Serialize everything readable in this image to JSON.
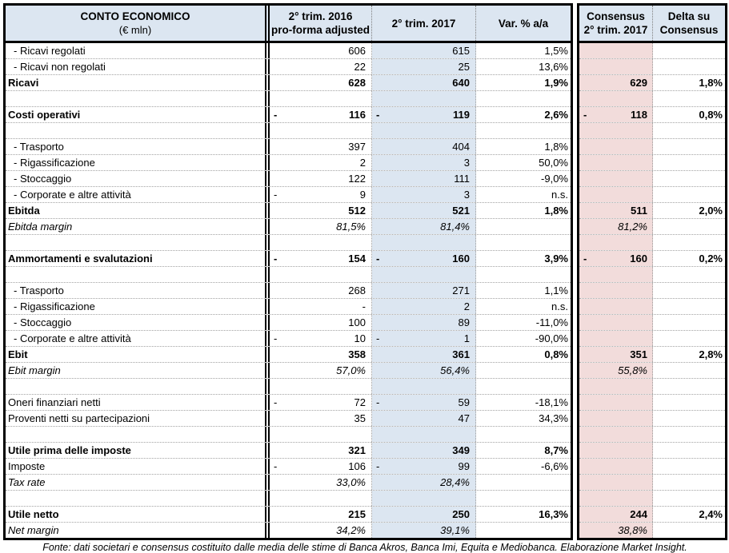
{
  "colors": {
    "header_bg": "#dce6f1",
    "col_2017_bg": "#dce6f1",
    "consensus_bg": "#f2dcdb",
    "border": "#000000"
  },
  "header": {
    "col1": {
      "line1": "CONTO ECONOMICO",
      "line2": "(€ mln)"
    },
    "col2": {
      "line1": "2° trim. 2016",
      "line2": "pro-forma adjusted"
    },
    "col3": {
      "line1": "2° trim. 2017"
    },
    "col4": {
      "line1": "Var. % a/a"
    },
    "col5": {
      "line1": "Consensus",
      "line2": "2° trim. 2017"
    },
    "col6": {
      "line1": "Delta su",
      "line2": "Consensus"
    }
  },
  "rows": [
    {
      "label": "- Ricavi regolati",
      "style": "sub",
      "v16": "606",
      "v17": "615",
      "var": "1,5%"
    },
    {
      "label": "- Ricavi non regolati",
      "style": "sub",
      "v16": "22",
      "v17": "25",
      "var": "13,6%"
    },
    {
      "label": "Ricavi",
      "style": "bold",
      "v16": "628",
      "v17": "640",
      "var": "1,9%",
      "vc": "629",
      "delta": "1,8%"
    },
    {
      "style": "blank"
    },
    {
      "label": "Costi operativi",
      "style": "bold",
      "s16": "-",
      "v16": "116",
      "s17": "-",
      "v17": "119",
      "var": "2,6%",
      "sc": "-",
      "vc": "118",
      "delta": "0,8%"
    },
    {
      "style": "blank"
    },
    {
      "label": "- Trasporto",
      "style": "sub",
      "v16": "397",
      "v17": "404",
      "var": "1,8%"
    },
    {
      "label": "- Rigassificazione",
      "style": "sub",
      "v16": "2",
      "v17": "3",
      "var": "50,0%"
    },
    {
      "label": "- Stoccaggio",
      "style": "sub",
      "v16": "122",
      "v17": "111",
      "var": "-9,0%"
    },
    {
      "label": "- Corporate e altre attività",
      "style": "sub",
      "s16": "-",
      "v16": "9",
      "v17": "3",
      "var": "n.s."
    },
    {
      "label": "Ebitda",
      "style": "bold",
      "v16": "512",
      "v17": "521",
      "var": "1,8%",
      "vc": "511",
      "delta": "2,0%"
    },
    {
      "label": "Ebitda margin",
      "style": "italic",
      "v16": "81,5%",
      "v17": "81,4%",
      "vc": "81,2%"
    },
    {
      "style": "blank"
    },
    {
      "label": "Ammortamenti e svalutazioni",
      "style": "bold",
      "s16": "-",
      "v16": "154",
      "s17": "-",
      "v17": "160",
      "var": "3,9%",
      "sc": "-",
      "vc": "160",
      "delta": "0,2%"
    },
    {
      "style": "blank"
    },
    {
      "label": "- Trasporto",
      "style": "sub",
      "v16": "268",
      "v17": "271",
      "var": "1,1%"
    },
    {
      "label": "- Rigassificazione",
      "style": "sub",
      "v16": "-",
      "v17": "2",
      "var": "n.s."
    },
    {
      "label": "- Stoccaggio",
      "style": "sub",
      "v16": "100",
      "v17": "89",
      "var": "-11,0%"
    },
    {
      "label": "- Corporate e altre attività",
      "style": "sub",
      "s16": "-",
      "v16": "10",
      "s17": "-",
      "v17": "1",
      "var": "-90,0%"
    },
    {
      "label": "Ebit",
      "style": "bold",
      "v16": "358",
      "v17": "361",
      "var": "0,8%",
      "vc": "351",
      "delta": "2,8%"
    },
    {
      "label": "Ebit margin",
      "style": "italic",
      "v16": "57,0%",
      "v17": "56,4%",
      "vc": "55,8%"
    },
    {
      "style": "blank"
    },
    {
      "label": "Oneri finanziari netti",
      "style": "normal",
      "s16": "-",
      "v16": "72",
      "s17": "-",
      "v17": "59",
      "var": "-18,1%"
    },
    {
      "label": "Proventi netti su partecipazioni",
      "style": "normal",
      "v16": "35",
      "v17": "47",
      "var": "34,3%"
    },
    {
      "style": "blank"
    },
    {
      "label": "Utile prima delle imposte",
      "style": "bold",
      "v16": "321",
      "v17": "349",
      "var": "8,7%"
    },
    {
      "label": "Imposte",
      "style": "normal",
      "s16": "-",
      "v16": "106",
      "s17": "-",
      "v17": "99",
      "var": "-6,6%"
    },
    {
      "label": "Tax rate",
      "style": "italic",
      "v16": "33,0%",
      "v17": "28,4%"
    },
    {
      "style": "blank"
    },
    {
      "label": "Utile netto",
      "style": "bold",
      "v16": "215",
      "v17": "250",
      "var": "16,3%",
      "vc": "244",
      "delta": "2,4%"
    },
    {
      "label": "Net margin",
      "style": "italic",
      "v16": "34,2%",
      "v17": "39,1%",
      "vc": "38,8%"
    }
  ],
  "footer": "Fonte: dati societari e consensus costituito dalle media delle stime di Banca Akros, Banca Imi, Equita e Mediobanca. Elaborazione Market Insight."
}
